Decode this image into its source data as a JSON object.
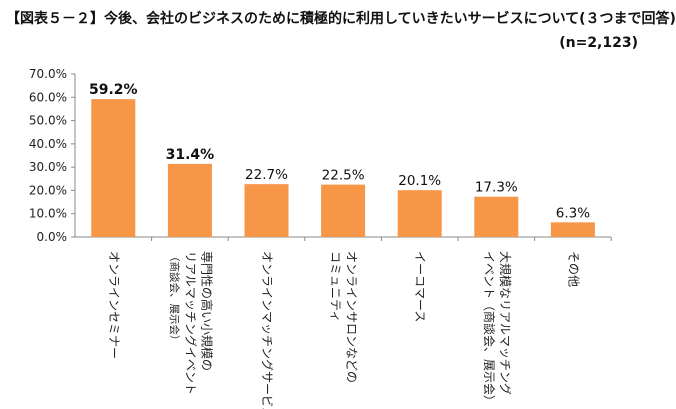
{
  "header": {
    "title": "【図表５－２】今後、会社のビジネスのために積極的に利用していきたいサービスについて(３つまで回答)",
    "sample": "(n=2,123)"
  },
  "chart_data": {
    "type": "bar",
    "title": "【図表５－２】今後、会社のビジネスのために積極的に利用していきたいサービスについて(３つまで回答)",
    "subtitle": "(n=2,123)",
    "categories": [
      [
        "オンラインセミナー"
      ],
      [
        "専門性の高い小規模の",
        "リアルマッチングイベント",
        "（商談会、展示会）"
      ],
      [
        "オンラインマッチングサービス"
      ],
      [
        "オンラインサロンなどの",
        "コミュニティ"
      ],
      [
        "イーコマース"
      ],
      [
        "大規模なリアルマッチング",
        "イベント（商談会、展示会）"
      ],
      [
        "その他"
      ]
    ],
    "values": [
      59.2,
      31.4,
      22.7,
      22.5,
      20.1,
      17.3,
      6.3
    ],
    "value_labels": [
      "59.2%",
      "31.4%",
      "22.7%",
      "22.5%",
      "20.1%",
      "17.3%",
      "6.3%"
    ],
    "bold_labels": [
      true,
      true,
      false,
      false,
      false,
      false,
      false
    ],
    "yticks": [
      "0.0%",
      "10.0%",
      "20.0%",
      "30.0%",
      "40.0%",
      "50.0%",
      "60.0%",
      "70.0%"
    ],
    "ylim": [
      0,
      70
    ],
    "bar_color": "#F79646",
    "grid": false,
    "legend": "none"
  }
}
